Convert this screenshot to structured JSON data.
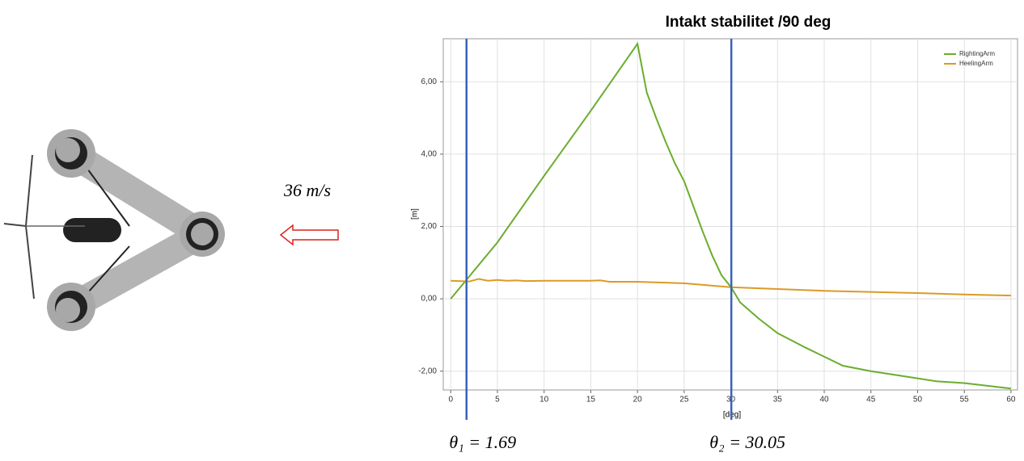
{
  "chart_data": {
    "type": "line",
    "title": "Intakt stabilitet /90 deg",
    "x_label": "[deg]",
    "y_label": "[m]",
    "wind_label": "36 m/s",
    "xlim": [
      -0.8,
      60.7
    ],
    "ylim": [
      -2.52,
      7.19
    ],
    "xticks": [
      0,
      5,
      10,
      15,
      20,
      25,
      30,
      35,
      40,
      45,
      50,
      55,
      60
    ],
    "yticks": [
      {
        "value": -2,
        "label": "-2,00"
      },
      {
        "value": 0,
        "label": "0,00"
      },
      {
        "value": 2,
        "label": "2,00"
      },
      {
        "value": 4,
        "label": "4,00"
      },
      {
        "value": 6,
        "label": "6,00"
      }
    ],
    "grid": true,
    "legend": "upper right",
    "vlines": [
      {
        "value": 1.69,
        "label": "θ₁ = 1.69"
      },
      {
        "value": 30.05,
        "label": "θ₂ = 30.05"
      }
    ],
    "vline_color": "#3a62b8",
    "series": [
      {
        "name": "RightingArm",
        "color": "#6aad2e",
        "x": [
          0,
          5,
          10,
          15,
          20,
          21,
          22,
          23,
          24,
          25,
          26,
          27,
          28,
          29,
          30,
          31,
          33,
          35,
          38,
          40,
          42,
          45,
          50,
          52,
          55,
          60
        ],
        "values": [
          0,
          1.56,
          3.4,
          5.2,
          7.05,
          5.7,
          5.0,
          4.35,
          3.75,
          3.25,
          2.55,
          1.85,
          1.2,
          0.65,
          0.33,
          -0.1,
          -0.55,
          -0.95,
          -1.35,
          -1.6,
          -1.85,
          -2.0,
          -2.2,
          -2.28,
          -2.33,
          -2.48
        ]
      },
      {
        "name": "HeelingArm",
        "color": "#dc9a26",
        "x": [
          0,
          2,
          3,
          4,
          5,
          6,
          7,
          8,
          10,
          15,
          16,
          17,
          20,
          25,
          30,
          35,
          40,
          45,
          50,
          55,
          60
        ],
        "values": [
          0.5,
          0.48,
          0.55,
          0.5,
          0.52,
          0.5,
          0.51,
          0.49,
          0.5,
          0.5,
          0.51,
          0.47,
          0.47,
          0.43,
          0.32,
          0.27,
          0.22,
          0.19,
          0.16,
          0.12,
          0.09
        ]
      }
    ]
  }
}
